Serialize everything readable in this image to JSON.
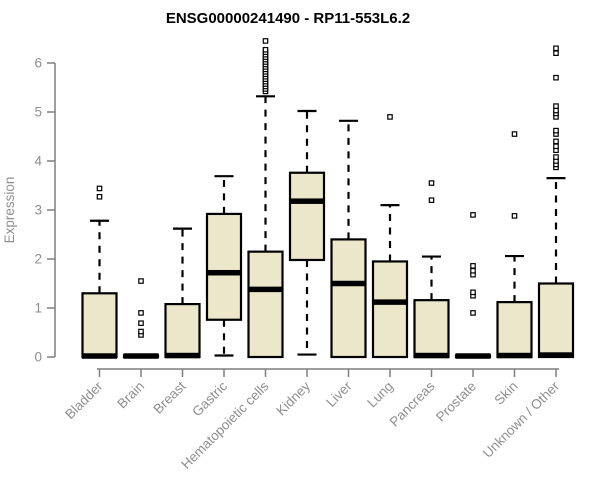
{
  "chart_data": {
    "type": "boxplot",
    "title": "ENSG00000241490 - RP11-553L6.2",
    "ylabel": "Expression",
    "xlabel": "",
    "ylim": [
      0,
      6.5
    ],
    "yticks": [
      0,
      1,
      2,
      3,
      4,
      5,
      6
    ],
    "grid": false,
    "legend": "none",
    "categories": [
      "Bladder",
      "Brain",
      "Breast",
      "Gastric",
      "Hematopoietic cells",
      "Kidney",
      "Liver",
      "Lung",
      "Pancreas",
      "Prostate",
      "Skin",
      "Unknown / Other"
    ],
    "boxes": [
      {
        "category": "Bladder",
        "whisker_low": 0,
        "q1": 0,
        "median": 0.02,
        "q3": 1.3,
        "whisker_high": 2.78,
        "outliers": [
          3.27,
          3.44
        ]
      },
      {
        "category": "Brain",
        "whisker_low": 0,
        "q1": 0,
        "median": 0.02,
        "q3": 0.03,
        "whisker_high": 0.03,
        "outliers": [
          0.45,
          0.52,
          0.69,
          0.9,
          1.55
        ]
      },
      {
        "category": "Breast",
        "whisker_low": 0,
        "q1": 0,
        "median": 0.03,
        "q3": 1.08,
        "whisker_high": 2.62,
        "outliers": []
      },
      {
        "category": "Gastric",
        "whisker_low": 0.03,
        "q1": 0.76,
        "median": 1.72,
        "q3": 2.92,
        "whisker_high": 3.69,
        "outliers": []
      },
      {
        "category": "Hematopoietic cells",
        "whisker_low": 0,
        "q1": 0,
        "median": 1.38,
        "q3": 2.15,
        "whisker_high": 5.32,
        "outliers": [
          5.42,
          5.47,
          5.52,
          5.57,
          5.62,
          5.67,
          5.72,
          5.77,
          5.82,
          5.87,
          5.92,
          5.97,
          6.02,
          6.07,
          6.12,
          6.17,
          6.22,
          6.27,
          6.45
        ]
      },
      {
        "category": "Kidney",
        "whisker_low": 0.05,
        "q1": 1.98,
        "median": 3.18,
        "q3": 3.76,
        "whisker_high": 5.02,
        "outliers": []
      },
      {
        "category": "Liver",
        "whisker_low": 0,
        "q1": 0,
        "median": 1.5,
        "q3": 2.4,
        "whisker_high": 4.82,
        "outliers": []
      },
      {
        "category": "Lung",
        "whisker_low": 0,
        "q1": 0,
        "median": 1.12,
        "q3": 1.95,
        "whisker_high": 3.1,
        "outliers": [
          4.9
        ]
      },
      {
        "category": "Pancreas",
        "whisker_low": 0,
        "q1": 0,
        "median": 0.03,
        "q3": 1.16,
        "whisker_high": 2.05,
        "outliers": [
          3.2,
          3.55
        ]
      },
      {
        "category": "Prostate",
        "whisker_low": 0,
        "q1": 0,
        "median": 0.02,
        "q3": 0.03,
        "whisker_high": 0.03,
        "outliers": [
          0.9,
          1.25,
          1.32,
          1.68,
          1.76,
          1.86,
          2.9
        ]
      },
      {
        "category": "Skin",
        "whisker_low": 0,
        "q1": 0,
        "median": 0.03,
        "q3": 1.12,
        "whisker_high": 2.06,
        "outliers": [
          2.88,
          4.55
        ]
      },
      {
        "category": "Unknown / Other",
        "whisker_low": 0,
        "q1": 0,
        "median": 0.04,
        "q3": 1.5,
        "whisker_high": 3.65,
        "outliers": [
          3.87,
          3.93,
          4.0,
          4.08,
          4.22,
          4.3,
          4.4,
          4.55,
          4.62,
          4.9,
          4.97,
          5.03,
          5.12,
          5.7,
          6.2,
          6.3
        ]
      }
    ],
    "style": {
      "box_fill": "#ece7cb",
      "box_stroke": "#000000",
      "median_color": "#000000",
      "whisker_color": "#000000",
      "outlier_fill": "#ffffff",
      "outlier_stroke": "#000000",
      "axis_color": "#7f7f7f",
      "tick_label_color": "#8f8f8f",
      "title_color": "#000000"
    }
  }
}
